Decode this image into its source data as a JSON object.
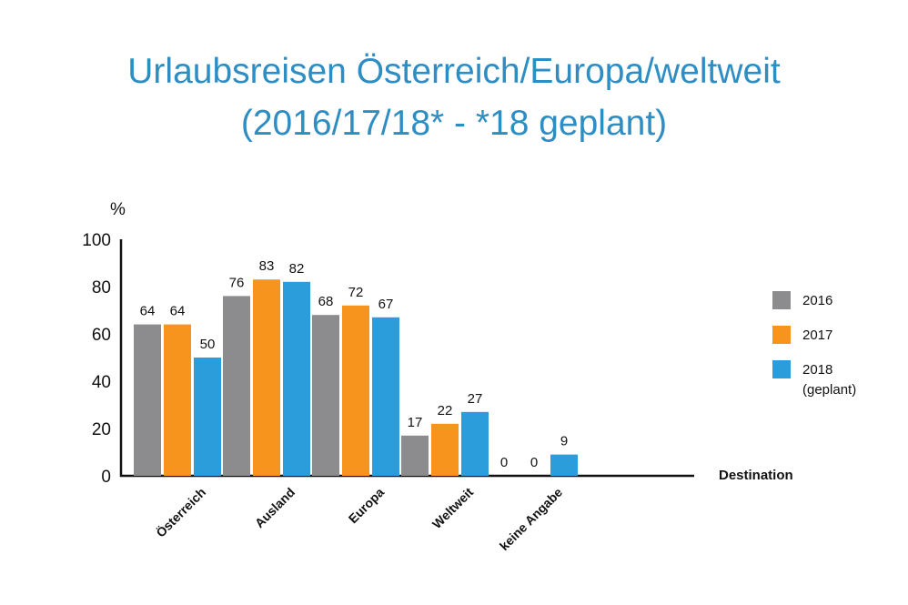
{
  "title_line1": "Urlaubsreisen Österreich/Europa/weltweit",
  "title_line2": "(2016/17/18* - *18 geplant)",
  "chart_data": {
    "type": "bar",
    "title": "Urlaubsreisen Österreich/Europa/weltweit (2016/17/18* - *18 geplant)",
    "xlabel": "Destination",
    "ylabel": "%",
    "ylim": [
      0,
      100
    ],
    "yticks": [
      0,
      20,
      40,
      60,
      80,
      100
    ],
    "grid": false,
    "legend_position": "right",
    "categories": [
      "Österreich",
      "Ausland",
      "Europa",
      "Weltweit",
      "keine Angabe"
    ],
    "series": [
      {
        "name": "2016",
        "color": "#8c8c8e",
        "values": [
          64,
          76,
          68,
          17,
          0
        ]
      },
      {
        "name": "2017",
        "color": "#f7941d",
        "values": [
          64,
          83,
          72,
          22,
          0
        ]
      },
      {
        "name": "2018",
        "name_line2": "(geplant)",
        "color": "#2b9ddb",
        "values": [
          50,
          82,
          67,
          27,
          9
        ]
      }
    ]
  }
}
